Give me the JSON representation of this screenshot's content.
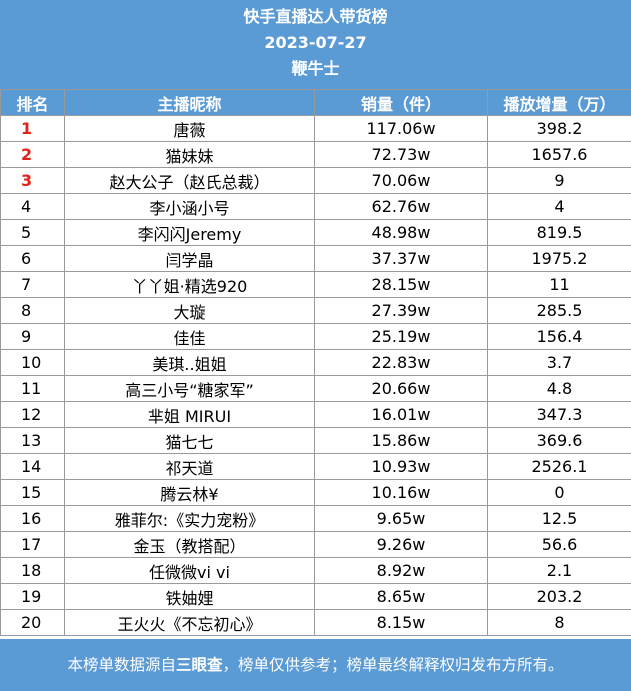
{
  "header": {
    "title": "快手直播达人带货榜",
    "date": "2023-07-27",
    "category": "鞭牛士"
  },
  "columns": [
    "排名",
    "主播昵称",
    "销量（件）",
    "播放增量（万）"
  ],
  "rows": [
    {
      "rank": "1",
      "name": "唐薇",
      "sales": "117.06w",
      "views": "398.2"
    },
    {
      "rank": "2",
      "name": "猫妹妹",
      "sales": "72.73w",
      "views": "1657.6"
    },
    {
      "rank": "3",
      "name": "赵大公子（赵氏总裁）",
      "sales": "70.06w",
      "views": "9"
    },
    {
      "rank": "4",
      "name": "李小涵小号",
      "sales": "62.76w",
      "views": "4"
    },
    {
      "rank": "5",
      "name": "李闪闪Jeremy",
      "sales": "48.98w",
      "views": "819.5"
    },
    {
      "rank": "6",
      "name": "闫学晶",
      "sales": "37.37w",
      "views": "1975.2"
    },
    {
      "rank": "7",
      "name": "丫丫姐·精选920",
      "sales": "28.15w",
      "views": "11"
    },
    {
      "rank": "8",
      "name": "大璇",
      "sales": "27.39w",
      "views": "285.5"
    },
    {
      "rank": "9",
      "name": "佳佳",
      "sales": "25.19w",
      "views": "156.4"
    },
    {
      "rank": "10",
      "name": "美琪..姐姐",
      "sales": "22.83w",
      "views": "3.7"
    },
    {
      "rank": "11",
      "name": "高三小号“糖家军”",
      "sales": "20.66w",
      "views": "4.8"
    },
    {
      "rank": "12",
      "name": "芈姐 MIRUI",
      "sales": "16.01w",
      "views": "347.3"
    },
    {
      "rank": "13",
      "name": "猫七七",
      "sales": "15.86w",
      "views": "369.6"
    },
    {
      "rank": "14",
      "name": "祁天道",
      "sales": "10.93w",
      "views": "2526.1"
    },
    {
      "rank": "15",
      "name": "腾云林¥",
      "sales": "10.16w",
      "views": "0"
    },
    {
      "rank": "16",
      "name": "雅菲尔:《实力宠粉》",
      "sales": "9.65w",
      "views": "12.5"
    },
    {
      "rank": "17",
      "name": "金玉（教搭配）",
      "sales": "9.26w",
      "views": "56.6"
    },
    {
      "rank": "18",
      "name": "任微微vi vi",
      "sales": "8.92w",
      "views": "2.1"
    },
    {
      "rank": "19",
      "name": "铁妯娌",
      "sales": "8.65w",
      "views": "203.2"
    },
    {
      "rank": "20",
      "name": "王火火《不忘初心》",
      "sales": "8.15w",
      "views": "8"
    }
  ],
  "footer": {
    "prefix": "本榜单数据源自",
    "source": "三眼查",
    "suffix": "，榜单仅供参考；榜单最终解释权归发布方所有。"
  },
  "colors": {
    "header_bg": "#5b9bd5",
    "top3_rank": "#e2231a"
  }
}
